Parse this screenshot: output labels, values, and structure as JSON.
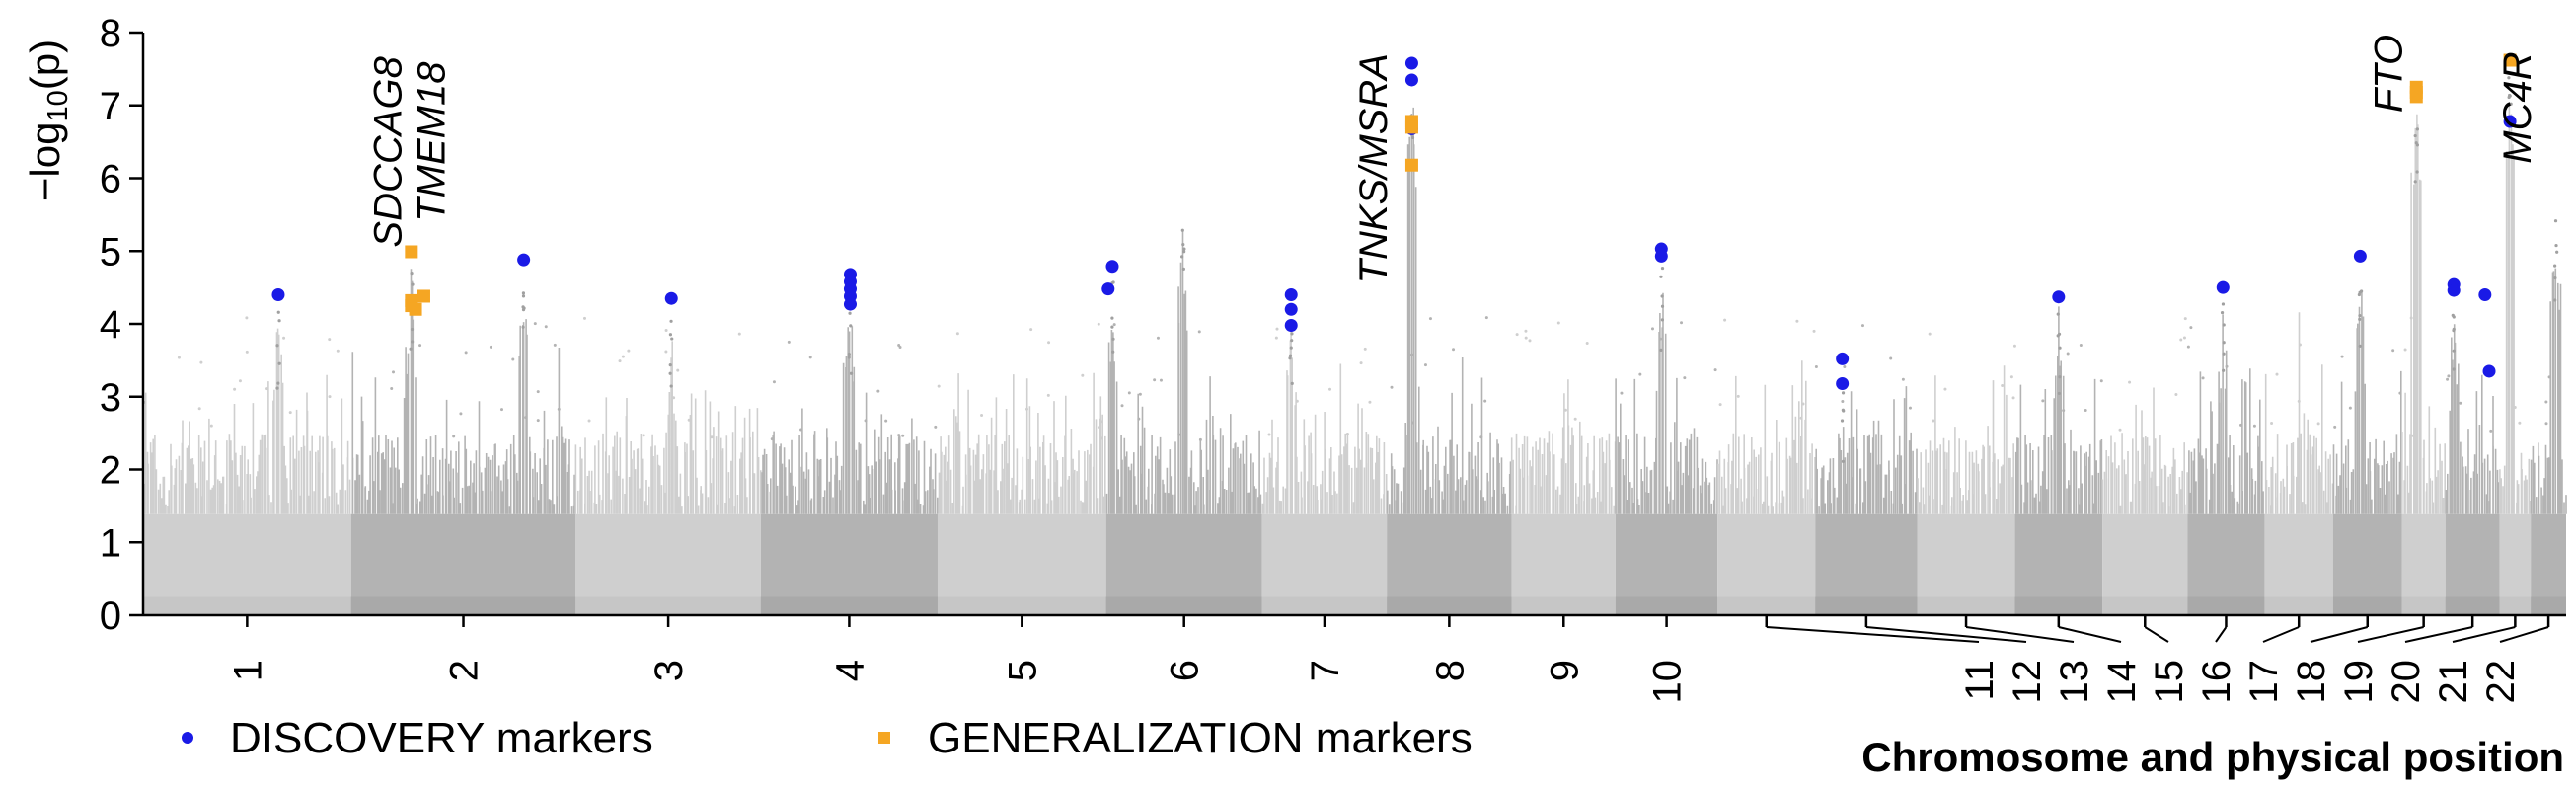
{
  "chart_data": {
    "type": "scatter",
    "ylabel_prefix": "−log",
    "ylabel_sub": "10",
    "ylabel_suffix": "(p)",
    "xlabel": "Chromosome and physical position",
    "ylim": [
      0,
      8
    ],
    "yticks": [
      0,
      1,
      2,
      3,
      4,
      5,
      6,
      7,
      8
    ],
    "chromosomes": [
      {
        "label": "1",
        "start": 0.0,
        "end": 100.0
      },
      {
        "label": "2",
        "start": 100.0,
        "end": 208.0
      },
      {
        "label": "3",
        "start": 208.0,
        "end": 297.0
      },
      {
        "label": "4",
        "start": 297.0,
        "end": 382.0
      },
      {
        "label": "5",
        "start": 382.0,
        "end": 463.0
      },
      {
        "label": "6",
        "start": 463.0,
        "end": 538.0
      },
      {
        "label": "7",
        "start": 538.0,
        "end": 598.0
      },
      {
        "label": "8",
        "start": 598.0,
        "end": 658.0
      },
      {
        "label": "9",
        "start": 658.0,
        "end": 708.0
      },
      {
        "label": "10",
        "start": 708.0,
        "end": 757.0
      },
      {
        "label": "11",
        "start": 757.0,
        "end": 804.0
      },
      {
        "label": "12",
        "start": 804.0,
        "end": 853.0
      },
      {
        "label": "13",
        "start": 853.0,
        "end": 900.0
      },
      {
        "label": "14",
        "start": 900.0,
        "end": 942.0
      },
      {
        "label": "15",
        "start": 942.0,
        "end": 983.0
      },
      {
        "label": "16",
        "start": 983.0,
        "end": 1020.0
      },
      {
        "label": "17",
        "start": 1020.0,
        "end": 1053.0
      },
      {
        "label": "18",
        "start": 1053.0,
        "end": 1086.0
      },
      {
        "label": "19",
        "start": 1086.0,
        "end": 1107.0
      },
      {
        "label": "20",
        "start": 1107.0,
        "end": 1133.0
      },
      {
        "label": "21",
        "start": 1133.0,
        "end": 1148.0
      },
      {
        "label": "22",
        "start": 1148.0,
        "end": 1165.0
      }
    ],
    "series": [
      {
        "name": "DISCOVERY markers",
        "color": "#1a1ae6",
        "shape": "circle",
        "points": [
          {
            "x": 65,
            "y": 4.4
          },
          {
            "x": 183,
            "y": 4.88
          },
          {
            "x": 254,
            "y": 4.35
          },
          {
            "x": 340,
            "y": 4.68
          },
          {
            "x": 340,
            "y": 4.58
          },
          {
            "x": 340,
            "y": 4.48
          },
          {
            "x": 340,
            "y": 4.38
          },
          {
            "x": 340,
            "y": 4.27
          },
          {
            "x": 464,
            "y": 4.48
          },
          {
            "x": 466,
            "y": 4.79
          },
          {
            "x": 552,
            "y": 4.4
          },
          {
            "x": 552,
            "y": 4.2
          },
          {
            "x": 552,
            "y": 3.98
          },
          {
            "x": 610,
            "y": 7.58
          },
          {
            "x": 610,
            "y": 7.35
          },
          {
            "x": 610,
            "y": 6.68
          },
          {
            "x": 730,
            "y": 5.03
          },
          {
            "x": 730,
            "y": 4.93
          },
          {
            "x": 817,
            "y": 3.52
          },
          {
            "x": 817,
            "y": 3.18
          },
          {
            "x": 921,
            "y": 4.37
          },
          {
            "x": 1000,
            "y": 4.5
          },
          {
            "x": 1066,
            "y": 4.93
          },
          {
            "x": 1111,
            "y": 4.54
          },
          {
            "x": 1111,
            "y": 4.46
          },
          {
            "x": 1126,
            "y": 4.4
          },
          {
            "x": 1128,
            "y": 3.35
          },
          {
            "x": 1138,
            "y": 6.78
          }
        ]
      },
      {
        "name": "GENERALIZATION markers",
        "color": "#f5a623",
        "shape": "square",
        "points": [
          {
            "x": 129,
            "y": 4.99
          },
          {
            "x": 129,
            "y": 4.32
          },
          {
            "x": 129,
            "y": 4.25
          },
          {
            "x": 131,
            "y": 4.2
          },
          {
            "x": 135,
            "y": 4.38
          },
          {
            "x": 610,
            "y": 6.78
          },
          {
            "x": 610,
            "y": 6.7
          },
          {
            "x": 610,
            "y": 6.18
          },
          {
            "x": 1093,
            "y": 7.25
          },
          {
            "x": 1093,
            "y": 7.18
          },
          {
            "x": 1093,
            "y": 7.12
          },
          {
            "x": 1138,
            "y": 7.62
          }
        ]
      }
    ],
    "annotations": [
      {
        "text": "SDCCAG8",
        "x": 124,
        "y": 5.05,
        "italic": true,
        "rotation": -90
      },
      {
        "text": "TMEM18",
        "x": 145,
        "y": 5.4,
        "italic": true,
        "rotation": -90
      },
      {
        "text": "TNKS/MSRA",
        "x": 598,
        "y": 4.55,
        "italic": true,
        "rotation": -90
      },
      {
        "text": "FTO",
        "x": 1086,
        "y": 6.9,
        "italic": true,
        "rotation": -90
      },
      {
        "text": "MC4R",
        "x": 1148,
        "y": 6.2,
        "italic": true,
        "rotation": -90
      }
    ],
    "background": {
      "description_colors": [
        "#cfcfcf",
        "#b3b3b3"
      ],
      "peaks": [
        {
          "x": 65,
          "y": 4.4
        },
        {
          "x": 129,
          "y": 5.0
        },
        {
          "x": 183,
          "y": 4.9
        },
        {
          "x": 254,
          "y": 4.3
        },
        {
          "x": 340,
          "y": 4.7
        },
        {
          "x": 466,
          "y": 4.8
        },
        {
          "x": 552,
          "y": 4.4
        },
        {
          "x": 610,
          "y": 7.6
        },
        {
          "x": 730,
          "y": 5.0
        },
        {
          "x": 817,
          "y": 3.5
        },
        {
          "x": 921,
          "y": 4.4
        },
        {
          "x": 1000,
          "y": 4.5
        },
        {
          "x": 1066,
          "y": 4.9
        },
        {
          "x": 1093,
          "y": 7.3
        },
        {
          "x": 1111,
          "y": 4.5
        },
        {
          "x": 1138,
          "y": 7.6
        },
        {
          "x": 500,
          "y": 5.7
        },
        {
          "x": 1160,
          "y": 5.7
        }
      ]
    }
  }
}
